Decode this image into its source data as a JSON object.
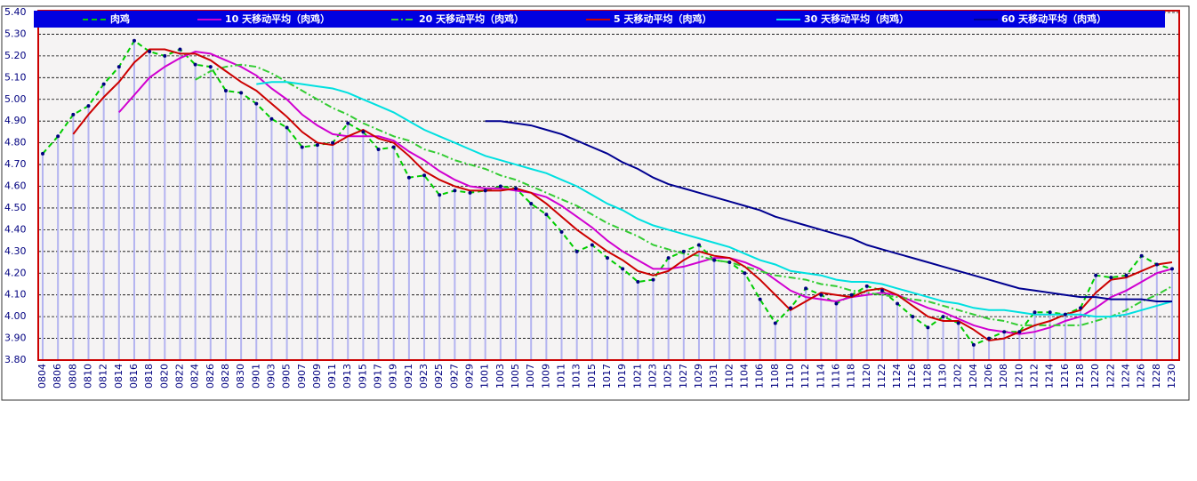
{
  "chart_data": {
    "type": "line",
    "categories": [
      "0804",
      "0806",
      "0808",
      "0810",
      "0812",
      "0814",
      "0816",
      "0818",
      "0820",
      "0822",
      "0824",
      "0826",
      "0828",
      "0830",
      "0901",
      "0903",
      "0905",
      "0907",
      "0909",
      "0911",
      "0913",
      "0915",
      "0917",
      "0919",
      "0921",
      "0923",
      "0925",
      "0927",
      "0929",
      "1001",
      "1003",
      "1005",
      "1007",
      "1009",
      "1011",
      "1013",
      "1015",
      "1017",
      "1019",
      "1021",
      "1023",
      "1025",
      "1027",
      "1029",
      "1031",
      "1102",
      "1104",
      "1106",
      "1108",
      "1110",
      "1112",
      "1114",
      "1116",
      "1118",
      "1120",
      "1122",
      "1124",
      "1126",
      "1128",
      "1130",
      "1202",
      "1204",
      "1206",
      "1208",
      "1210",
      "1212",
      "1214",
      "1216",
      "1218",
      "1220",
      "1222",
      "1224",
      "1226",
      "1228",
      "1230"
    ],
    "series": [
      {
        "name": "肉鸡",
        "color": "#00cc00",
        "dash": "6,4",
        "markers": true,
        "values": [
          4.75,
          4.83,
          4.93,
          4.97,
          5.07,
          5.15,
          5.27,
          5.22,
          5.2,
          5.23,
          5.16,
          5.15,
          5.04,
          5.03,
          4.98,
          4.91,
          4.87,
          4.78,
          4.79,
          4.8,
          4.89,
          4.85,
          4.77,
          4.78,
          4.64,
          4.65,
          4.56,
          4.58,
          4.57,
          4.58,
          4.6,
          4.59,
          4.52,
          4.47,
          4.39,
          4.3,
          4.33,
          4.27,
          4.22,
          4.16,
          4.17,
          4.27,
          4.3,
          4.33,
          4.26,
          4.25,
          4.2,
          4.08,
          3.97,
          4.04,
          4.13,
          4.1,
          4.06,
          4.1,
          4.14,
          4.12,
          4.06,
          4.0,
          3.95,
          4.0,
          3.97,
          3.87,
          3.9,
          3.93,
          3.93,
          4.02,
          4.02,
          4.01,
          4.04,
          4.19,
          4.18,
          4.19,
          4.28,
          4.24,
          4.22
        ]
      },
      {
        "name": "10 天移动平均（肉鸡）",
        "color": "#d000d0",
        "values": [
          null,
          null,
          null,
          null,
          null,
          4.94,
          5.02,
          5.1,
          5.15,
          5.19,
          5.22,
          5.21,
          5.18,
          5.15,
          5.11,
          5.05,
          5.0,
          4.93,
          4.88,
          4.84,
          4.83,
          4.83,
          4.83,
          4.81,
          4.76,
          4.72,
          4.67,
          4.63,
          4.6,
          4.59,
          4.59,
          4.58,
          4.57,
          4.55,
          4.51,
          4.46,
          4.41,
          4.35,
          4.3,
          4.26,
          4.22,
          4.22,
          4.23,
          4.25,
          4.27,
          4.27,
          4.25,
          4.22,
          4.17,
          4.12,
          4.09,
          4.08,
          4.07,
          4.09,
          4.1,
          4.11,
          4.1,
          4.07,
          4.04,
          4.02,
          3.99,
          3.96,
          3.94,
          3.93,
          3.92,
          3.93,
          3.95,
          3.98,
          4.0,
          4.04,
          4.09,
          4.12,
          4.16,
          4.2,
          4.22
        ]
      },
      {
        "name": "20 天移动平均（肉鸡）",
        "color": "#33cc33",
        "dash": "8,3,2,3",
        "values": [
          null,
          null,
          null,
          null,
          null,
          null,
          null,
          null,
          null,
          null,
          5.09,
          5.13,
          5.15,
          5.16,
          5.15,
          5.12,
          5.08,
          5.04,
          5.0,
          4.96,
          4.93,
          4.89,
          4.86,
          4.83,
          4.81,
          4.77,
          4.75,
          4.72,
          4.7,
          4.68,
          4.65,
          4.63,
          4.6,
          4.57,
          4.54,
          4.51,
          4.47,
          4.43,
          4.4,
          4.37,
          4.33,
          4.31,
          4.29,
          4.28,
          4.26,
          4.25,
          4.23,
          4.21,
          4.19,
          4.18,
          4.17,
          4.15,
          4.14,
          4.12,
          4.11,
          4.1,
          4.09,
          4.08,
          4.07,
          4.05,
          4.03,
          4.01,
          3.99,
          3.98,
          3.96,
          3.96,
          3.96,
          3.96,
          3.96,
          3.98,
          4.0,
          4.03,
          4.07,
          4.1,
          4.14
        ]
      },
      {
        "name": "5 天移动平均（肉鸡）",
        "color": "#cc0000",
        "values": [
          null,
          null,
          4.84,
          4.93,
          5.01,
          5.08,
          5.17,
          5.23,
          5.23,
          5.21,
          5.21,
          5.18,
          5.13,
          5.08,
          5.04,
          4.98,
          4.92,
          4.85,
          4.8,
          4.79,
          4.83,
          4.86,
          4.82,
          4.8,
          4.74,
          4.67,
          4.63,
          4.6,
          4.58,
          4.58,
          4.58,
          4.59,
          4.57,
          4.52,
          4.46,
          4.4,
          4.35,
          4.3,
          4.26,
          4.21,
          4.19,
          4.21,
          4.26,
          4.3,
          4.28,
          4.27,
          4.23,
          4.17,
          4.1,
          4.03,
          4.07,
          4.11,
          4.1,
          4.09,
          4.12,
          4.13,
          4.1,
          4.05,
          4.0,
          3.98,
          3.98,
          3.94,
          3.89,
          3.9,
          3.93,
          3.96,
          3.98,
          4.01,
          4.03,
          4.11,
          4.17,
          4.18,
          4.21,
          4.24,
          4.25
        ]
      },
      {
        "name": "30 天移动平均（肉鸡）",
        "color": "#00e0e0",
        "values": [
          null,
          null,
          null,
          null,
          null,
          null,
          null,
          null,
          null,
          null,
          null,
          null,
          null,
          null,
          5.07,
          5.08,
          5.08,
          5.07,
          5.06,
          5.05,
          5.03,
          5.0,
          4.97,
          4.94,
          4.9,
          4.86,
          4.83,
          4.8,
          4.77,
          4.74,
          4.72,
          4.7,
          4.68,
          4.66,
          4.63,
          4.6,
          4.56,
          4.52,
          4.49,
          4.45,
          4.42,
          4.4,
          4.38,
          4.36,
          4.34,
          4.32,
          4.29,
          4.26,
          4.24,
          4.21,
          4.2,
          4.19,
          4.17,
          4.16,
          4.16,
          4.15,
          4.13,
          4.11,
          4.09,
          4.07,
          4.06,
          4.04,
          4.03,
          4.03,
          4.02,
          4.01,
          4.01,
          4.01,
          4.01,
          4.0,
          4.0,
          4.01,
          4.03,
          4.05,
          4.07
        ]
      },
      {
        "name": "60 天移动平均（肉鸡）",
        "color": "#000090",
        "values": [
          null,
          null,
          null,
          null,
          null,
          null,
          null,
          null,
          null,
          null,
          null,
          null,
          null,
          null,
          null,
          null,
          null,
          null,
          null,
          null,
          null,
          null,
          null,
          null,
          null,
          null,
          null,
          null,
          null,
          4.9,
          4.9,
          4.89,
          4.88,
          4.86,
          4.84,
          4.81,
          4.78,
          4.75,
          4.71,
          4.68,
          4.64,
          4.61,
          4.59,
          4.57,
          4.55,
          4.53,
          4.51,
          4.49,
          4.46,
          4.44,
          4.42,
          4.4,
          4.38,
          4.36,
          4.33,
          4.31,
          4.29,
          4.27,
          4.25,
          4.23,
          4.21,
          4.19,
          4.17,
          4.15,
          4.13,
          4.12,
          4.11,
          4.1,
          4.09,
          4.09,
          4.08,
          4.08,
          4.08,
          4.07,
          4.07
        ]
      }
    ],
    "ylim": [
      3.8,
      5.4
    ],
    "yticks": [
      {
        "value": 3.8,
        "label": "3.80"
      },
      {
        "value": 3.9,
        "label": "3.90"
      },
      {
        "value": 4,
        "label": "4.00"
      },
      {
        "value": 4.1,
        "label": "4.10"
      },
      {
        "value": 4.2,
        "label": "4.20"
      },
      {
        "value": 4.3,
        "label": "4.30"
      },
      {
        "value": 4.4,
        "label": "4.40"
      },
      {
        "value": 4.5,
        "label": "4.50"
      },
      {
        "value": 4.6,
        "label": "4.60"
      },
      {
        "value": 4.7,
        "label": "4.70"
      },
      {
        "value": 4.8,
        "label": "4.80"
      },
      {
        "value": 4.9,
        "label": "4.90"
      },
      {
        "value": 5,
        "label": "5.00"
      },
      {
        "value": 5.1,
        "label": "5.10"
      },
      {
        "value": 5.2,
        "label": "5.20"
      },
      {
        "value": 5.3,
        "label": "5.30"
      },
      {
        "value": 5.4,
        "label": "5.40"
      }
    ],
    "grid": true,
    "legend": "top",
    "bar_color": "#b4b4f0",
    "marker_color": "#000080"
  }
}
